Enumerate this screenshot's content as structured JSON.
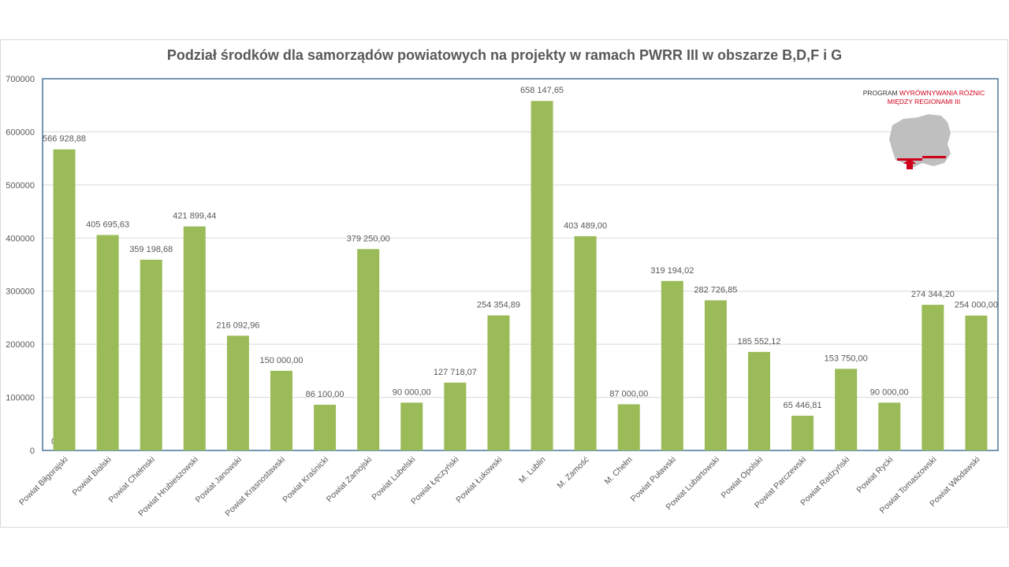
{
  "chart_data": {
    "type": "bar",
    "title": "Podział środków dla samorządów powiatowych na projekty w ramach PWRR III w obszarze B,D,F i G",
    "categories": [
      "Powiat Biłgorajski",
      "Powiat Bialski",
      "Powiat Chełmski",
      "Powiat Hrubieszowski",
      "Powiat Janowski",
      "Powiat Krasnostawski",
      "Powiat Kraśnicki",
      "Powiat Zamojski",
      "Powiat Lubelski",
      "Powiat Łęczyński",
      "Powiat Łukowski",
      "M. Lublin",
      "M. Zamość",
      "M. Chełm",
      "Powiat  Puławski",
      "Powiat Lubartowski",
      "Powiat Opolski",
      "Powiat Parczewski",
      "Powiat Radzyński",
      "Powiat Rycki",
      "Powiat Tomaszowski",
      "Powiat Włodawski"
    ],
    "values": [
      566928.88,
      405695.63,
      359198.68,
      421899.44,
      216092.96,
      150000.0,
      86100.0,
      379250.0,
      90000.0,
      127718.07,
      254354.89,
      658147.65,
      403489.0,
      87000.0,
      319194.02,
      282726.85,
      185552.12,
      65446.81,
      153750.0,
      90000.0,
      274344.2,
      254000.0
    ],
    "data_labels": [
      "566 928,88",
      "405 695,63",
      "359 198,68",
      "421 899,44",
      "216 092,96",
      "150 000,00",
      "86 100,00",
      "379 250,00",
      "90 000,00",
      "127 718,07",
      "254 354,89",
      "658 147,65",
      "403 489,00",
      "87 000,00",
      "319 194,02",
      "282 726,85",
      "185 552,12",
      "65 446,81",
      "153 750,00",
      "90 000,00",
      "274 344,20",
      "254 000,00"
    ],
    "stray_label": "0",
    "yticks": [
      "0",
      "100000",
      "200000",
      "300000",
      "400000",
      "500000",
      "600000",
      "700000"
    ],
    "ylim": [
      0,
      700000
    ],
    "bar_color": "#9bbb59",
    "grid": true
  },
  "logo": {
    "line1_plain": "PROGRAM ",
    "line1_red": "WYRÓWNYWANIA RÓŻNIC",
    "line2_red": "MIĘDZY REGIONAMI III",
    "accent": "#d0021b",
    "map_color": "#bfbfbf"
  }
}
